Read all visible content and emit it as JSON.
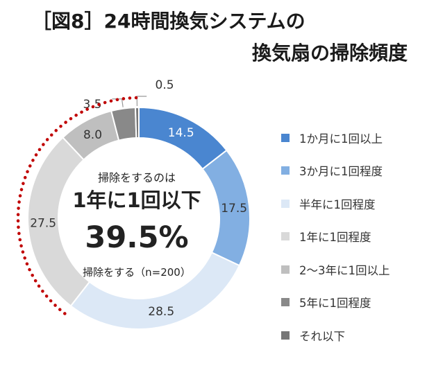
{
  "title": {
    "line1": "［図8］24時間換気システムの",
    "line2": "換気扇の掃除頻度"
  },
  "center": {
    "line1": "掃除をするのは",
    "line2": "1年に1回以下",
    "line3": "39.5%",
    "line4": "掃除をする（n=200）"
  },
  "chart_data": {
    "type": "pie",
    "donut": true,
    "start": "top, clockwise",
    "categories": [
      "1か月に1回以上",
      "3か月に1回程度",
      "半年に1回程度",
      "1年に1回程度",
      "2～3年に1回以上",
      "5年に1回程度",
      "それ以下"
    ],
    "values": [
      14.5,
      17.5,
      28.5,
      27.5,
      8.0,
      3.5,
      0.5
    ],
    "data_labels": [
      "14.5",
      "17.5",
      "28.5",
      "27.5",
      "8.0",
      "3.5",
      "0.5"
    ],
    "colors": [
      "#4a86d0",
      "#82afe2",
      "#dce8f6",
      "#d9d9d9",
      "#bfbfbf",
      "#898989",
      "#777777"
    ],
    "highlight_categories": [
      "1年に1回程度",
      "2～3年に1回以上",
      "5年に1回程度",
      "それ以下"
    ],
    "highlight_color": "#c00000",
    "legend_position": "right"
  }
}
